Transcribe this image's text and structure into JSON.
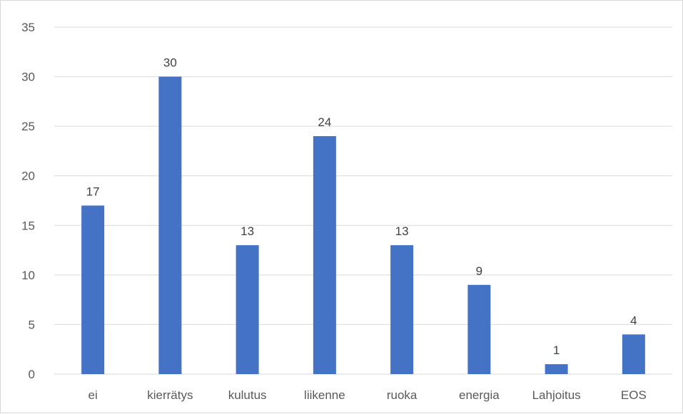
{
  "chart_data": {
    "type": "bar",
    "title": "",
    "xlabel": "",
    "ylabel": "",
    "categories": [
      "ei",
      "kierrätys",
      "kulutus",
      "liikenne",
      "ruoka",
      "energia",
      "Lahjoitus",
      "EOS"
    ],
    "values": [
      17,
      30,
      13,
      24,
      13,
      9,
      1,
      4
    ],
    "data_labels": [
      "17",
      "30",
      "13",
      "24",
      "13",
      "9",
      "1",
      "4"
    ],
    "ylim": [
      0,
      35
    ],
    "yticks": [
      0,
      5,
      10,
      15,
      20,
      25,
      30,
      35
    ],
    "ytick_labels": [
      "0",
      "5",
      "10",
      "15",
      "20",
      "25",
      "30",
      "35"
    ],
    "grid": true,
    "legend": "none",
    "bar_color": "#4472C4"
  }
}
